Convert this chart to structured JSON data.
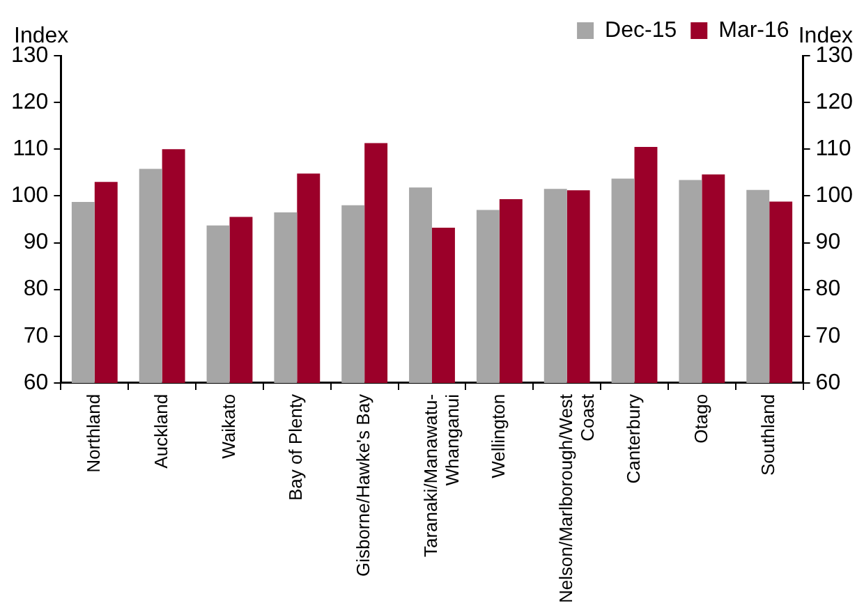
{
  "chart_data": {
    "type": "bar",
    "ylabel": "Index",
    "y2label": "Index",
    "categories": [
      "Northland",
      "Auckland",
      "Waikato",
      "Bay of Plenty",
      "Gisborne/Hawke's Bay",
      "Taranaki/Manawatu-Whanganui",
      "Wellington",
      "Nelson/Marlborough/West Coast",
      "Canterbury",
      "Otago",
      "Southland"
    ],
    "series": [
      {
        "name": "Dec-15",
        "color": "#a6a6a6",
        "values": [
          98.7,
          105.8,
          93.7,
          96.5,
          98,
          101.8,
          97,
          101.5,
          103.7,
          103.4,
          101.3
        ]
      },
      {
        "name": "Mar-16",
        "color": "#9b0029",
        "values": [
          103,
          110,
          95.5,
          104.8,
          111.3,
          93.2,
          99.3,
          101.2,
          110.5,
          104.6,
          98.8
        ]
      }
    ],
    "ylim": [
      60,
      130
    ],
    "yticks": [
      60,
      70,
      80,
      90,
      100,
      110,
      120,
      130
    ],
    "y2lim": [
      60,
      130
    ],
    "y2ticks": [
      60,
      70,
      80,
      90,
      100,
      110,
      120,
      130
    ],
    "grid": false,
    "legend": "top right"
  }
}
